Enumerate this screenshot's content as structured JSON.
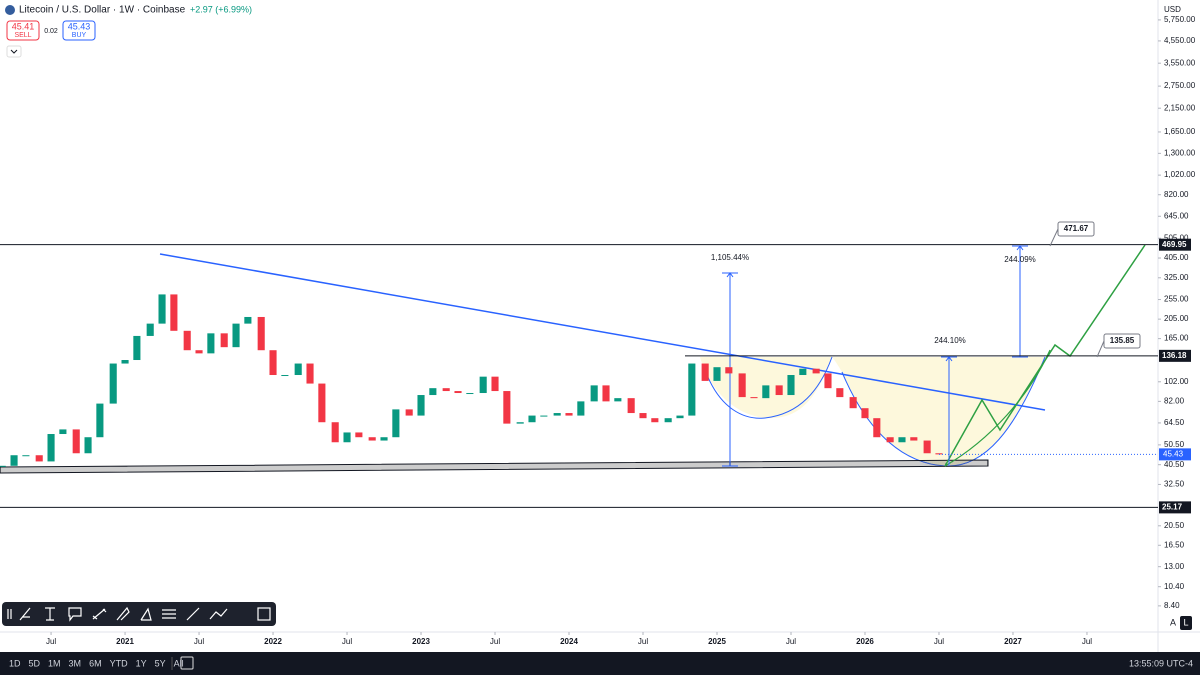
{
  "header": {
    "symbol": "Litecoin / U.S. Dollar · 1W · Coinbase",
    "change": "+2.97 (+6.99%)",
    "sell_price": "45.41",
    "sell_label": "SELL",
    "spread": "0.02",
    "buy_price": "45.43",
    "buy_label": "BUY",
    "currency": "USD"
  },
  "chart_data": {
    "type": "candlestick",
    "x": [
      2020.17,
      2020.25,
      2020.33,
      2020.42,
      2020.5,
      2020.58,
      2020.67,
      2020.75,
      2020.83,
      2020.92,
      2021.0,
      2021.08,
      2021.17,
      2021.25,
      2021.33,
      2021.42,
      2021.5,
      2021.58,
      2021.67,
      2021.75,
      2021.83,
      2021.92,
      2022.0,
      2022.08,
      2022.17,
      2022.25,
      2022.33,
      2022.42,
      2022.5,
      2022.58,
      2022.67,
      2022.75,
      2022.83,
      2022.92,
      2023.0,
      2023.08,
      2023.17,
      2023.25,
      2023.33,
      2023.42,
      2023.5,
      2023.58,
      2023.67,
      2023.75,
      2023.83,
      2023.92,
      2024.0,
      2024.08,
      2024.17,
      2024.25,
      2024.33,
      2024.42,
      2024.5,
      2024.58,
      2024.67,
      2024.75,
      2024.83,
      2024.92,
      2025.0,
      2025.08,
      2025.17,
      2025.25,
      2025.33,
      2025.42,
      2025.5,
      2025.58,
      2025.67,
      2025.75,
      2025.83,
      2025.92,
      2026.0,
      2026.08,
      2026.17,
      2026.25,
      2026.33,
      2026.42,
      2026.5
    ],
    "values": [
      40,
      45,
      45,
      42,
      57,
      60,
      46,
      55,
      80,
      125,
      130,
      170,
      195,
      270,
      180,
      145,
      140,
      175,
      150,
      195,
      210,
      145,
      110,
      110,
      125,
      100,
      65,
      52,
      58,
      55,
      53,
      55,
      75,
      70,
      88,
      95,
      92,
      90,
      90,
      108,
      92,
      64,
      65,
      70,
      70,
      72,
      70,
      82,
      98,
      82,
      85,
      72,
      68,
      65,
      68,
      70,
      125,
      103,
      120,
      112,
      86,
      85,
      98,
      88,
      110,
      118,
      112,
      95,
      86,
      76,
      68,
      55,
      52,
      55,
      53,
      46,
      45.43
    ],
    "up_color": "#089981",
    "down_color": "#f23645",
    "xlim": [
      2020.155,
      2027.98
    ],
    "xticks": [
      {
        "value": 2020.5,
        "label": "Jul"
      },
      2021,
      {
        "value": 2021.5,
        "label": "Jul"
      },
      2022,
      {
        "value": 2022.5,
        "label": "Jul"
      },
      2023,
      {
        "value": 2023.5,
        "label": "Jul"
      },
      2024,
      {
        "value": 2024.5,
        "label": "Jul"
      },
      2025,
      {
        "value": 2025.5,
        "label": "Jul"
      },
      2026,
      {
        "value": 2026.5,
        "label": "Jul"
      },
      2027,
      {
        "value": 2027.5,
        "label": "Jul"
      }
    ],
    "ylim": [
      6.42,
      7178
    ],
    "log_scale": true,
    "yticks": [
      {
        "value": 5750,
        "label": "5,750.00"
      },
      {
        "value": 4550,
        "label": "4,550.00"
      },
      {
        "value": 3550,
        "label": "3,550.00"
      },
      {
        "value": 2750,
        "label": "2,750.00"
      },
      {
        "value": 2150,
        "label": "2,150.00"
      },
      {
        "value": 1650,
        "label": "1,650.00"
      },
      {
        "value": 1300,
        "label": "1,300.00"
      },
      {
        "value": 1020,
        "label": "1,020.00"
      },
      {
        "value": 820,
        "label": "820.00"
      },
      {
        "value": 645,
        "label": "645.00"
      },
      {
        "value": 505,
        "label": "505.00"
      },
      {
        "value": 405,
        "label": "405.00"
      },
      {
        "value": 325,
        "label": "325.00"
      },
      {
        "value": 255,
        "label": "255.00"
      },
      {
        "value": 205,
        "label": "205.00"
      },
      {
        "value": 165,
        "label": "165.00"
      },
      {
        "value": 102,
        "label": "102.00"
      },
      {
        "value": 82,
        "label": "82.00"
      },
      {
        "value": 64.5,
        "label": "64.50"
      },
      {
        "value": 50.5,
        "label": "50.50"
      },
      {
        "value": 40.5,
        "label": "40.50"
      },
      {
        "value": 32.5,
        "label": "32.50"
      },
      {
        "value": 20.5,
        "label": "20.50"
      },
      {
        "value": 16.5,
        "label": "16.50"
      },
      {
        "value": 13,
        "label": "13.00"
      },
      {
        "value": 10.4,
        "label": "10.40"
      },
      {
        "value": 8.4,
        "label": "8.40"
      }
    ],
    "horizontal_lines": [
      469.95,
      136.18,
      25.17
    ],
    "last_price": 45.43,
    "annotations": [
      "1,105.44%",
      "244.09%",
      "244.10%"
    ],
    "target_labels": [
      471.67,
      135.85
    ]
  },
  "toolbar": {
    "intervals": [
      "1D",
      "5D",
      "1M",
      "3M",
      "6M",
      "YTD",
      "1Y",
      "5Y",
      "All"
    ],
    "clock": "13:55:09 UTC-4"
  },
  "axis_buttons": [
    "A",
    "L"
  ]
}
